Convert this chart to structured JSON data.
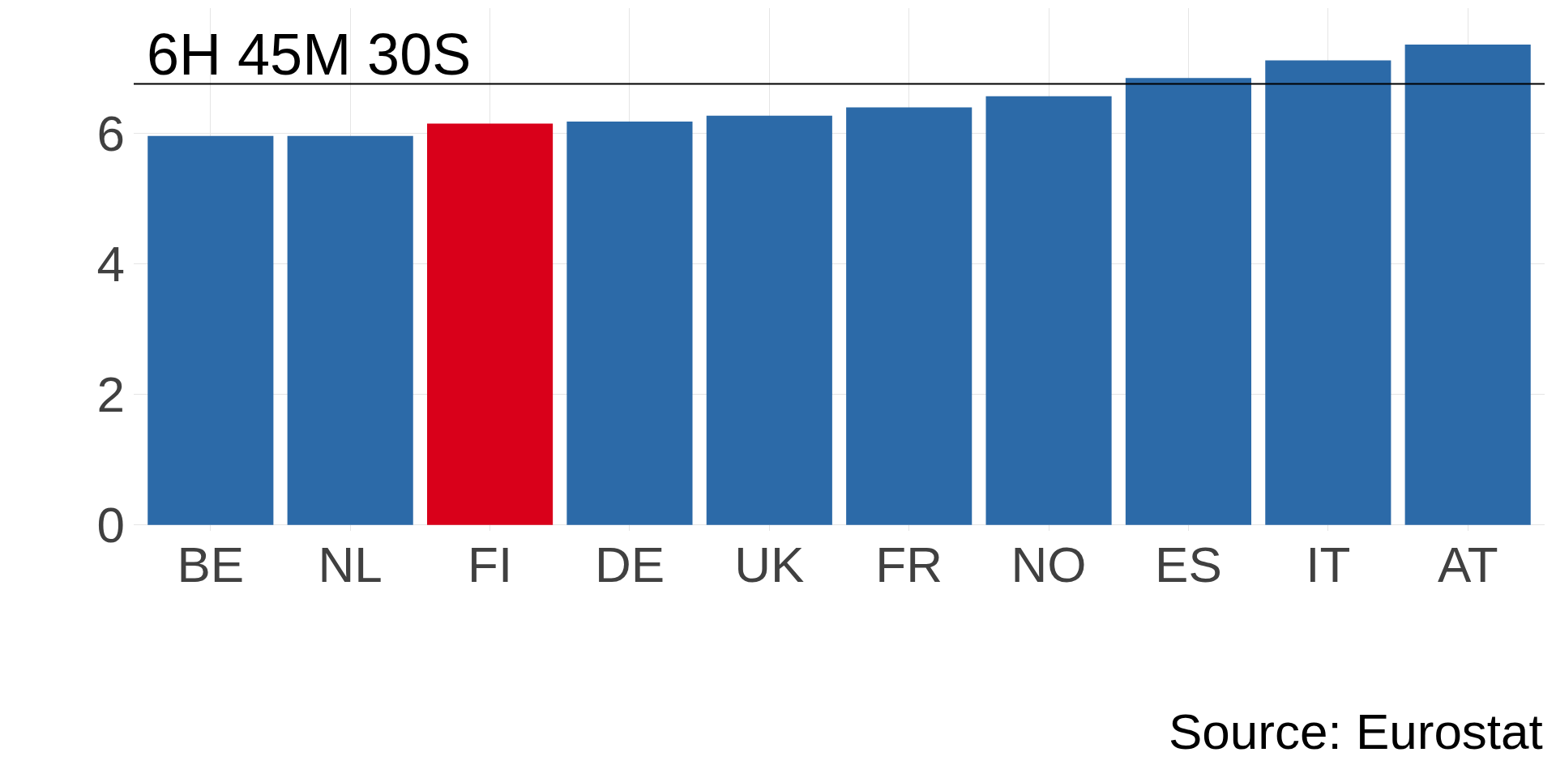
{
  "chart_data": {
    "type": "bar",
    "categories": [
      "BE",
      "NL",
      "FI",
      "DE",
      "UK",
      "FR",
      "NO",
      "ES",
      "IT",
      "AT"
    ],
    "values": [
      5.96,
      5.96,
      6.15,
      6.18,
      6.27,
      6.4,
      6.57,
      6.85,
      7.12,
      7.36
    ],
    "colors": [
      "#2c6aa8",
      "#2c6aa8",
      "#d9001a",
      "#2c6aa8",
      "#2c6aa8",
      "#2c6aa8",
      "#2c6aa8",
      "#2c6aa8",
      "#2c6aa8",
      "#2c6aa8"
    ],
    "ylim": [
      -0.09,
      7.92
    ],
    "yticks": [
      0,
      2,
      4,
      6
    ],
    "grid": true,
    "ref_lines": [
      {
        "axis": "y",
        "value": 6.76,
        "label": "6H 45M 30S",
        "color": "#000000"
      }
    ],
    "annotations": [
      "Source: Eurostat"
    ]
  }
}
